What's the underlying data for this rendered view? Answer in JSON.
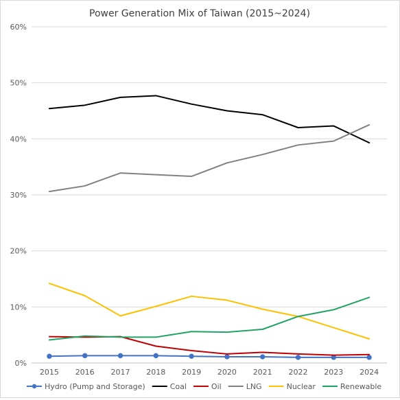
{
  "chart_data": {
    "type": "line",
    "title": "Power Generation Mix of Taiwan (2015~2024)",
    "x": [
      "2015",
      "2016",
      "2017",
      "2018",
      "2019",
      "2020",
      "2021",
      "2022",
      "2023",
      "2024"
    ],
    "ylim": [
      0,
      60
    ],
    "yticks": [
      "0%",
      "10%",
      "20%",
      "30%",
      "40%",
      "50%",
      "60%"
    ],
    "grid": true,
    "legend_position": "bottom",
    "series": [
      {
        "name": "Hydro (Pump and Storage)",
        "color": "#4472c4",
        "markers": true,
        "values": [
          1.2,
          1.3,
          1.3,
          1.3,
          1.2,
          1.1,
          1.1,
          1.0,
          1.0,
          1.0
        ]
      },
      {
        "name": "Coal",
        "color": "#000000",
        "markers": false,
        "values": [
          45.4,
          46.0,
          47.4,
          47.7,
          46.2,
          45.0,
          44.3,
          42.0,
          42.3,
          39.3
        ]
      },
      {
        "name": "Oil",
        "color": "#c00000",
        "markers": false,
        "values": [
          4.7,
          4.6,
          4.7,
          3.0,
          2.2,
          1.6,
          1.9,
          1.6,
          1.4,
          1.5
        ]
      },
      {
        "name": "LNG",
        "color": "#808080",
        "markers": false,
        "values": [
          30.6,
          31.6,
          33.9,
          33.6,
          33.3,
          35.7,
          37.2,
          38.9,
          39.6,
          42.5
        ]
      },
      {
        "name": "Nuclear",
        "color": "#ffc000",
        "markers": false,
        "values": [
          14.2,
          12.0,
          8.4,
          10.1,
          11.9,
          11.2,
          9.6,
          8.3,
          6.3,
          4.3
        ]
      },
      {
        "name": "Renewable",
        "color": "#21a366",
        "markers": false,
        "values": [
          4.1,
          4.8,
          4.6,
          4.6,
          5.6,
          5.5,
          6.0,
          8.3,
          9.5,
          11.7
        ]
      }
    ]
  }
}
